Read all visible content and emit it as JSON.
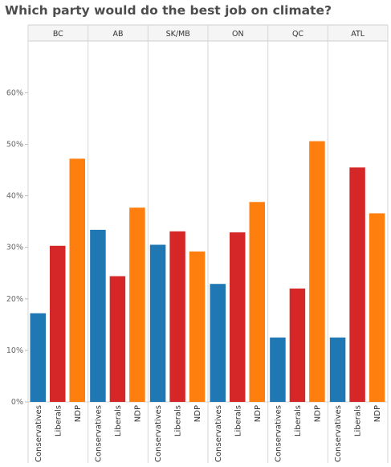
{
  "chart_data": {
    "type": "bar",
    "title": "Which party would do the best job on climate?",
    "regions": [
      "BC",
      "AB",
      "SK/MB",
      "ON",
      "QC",
      "ATL"
    ],
    "categories": [
      "Conservatives",
      "Liberals",
      "NDP"
    ],
    "colors": {
      "Conservatives": "#1f77b4",
      "Liberals": "#d62728",
      "NDP": "#ff7f0e"
    },
    "values": {
      "BC": [
        17.2,
        30.3,
        47.2
      ],
      "AB": [
        33.4,
        24.4,
        37.7
      ],
      "SK/MB": [
        30.5,
        33.1,
        29.2
      ],
      "ON": [
        22.9,
        32.9,
        38.8
      ],
      "QC": [
        12.5,
        22.0,
        50.6
      ],
      "ATL": [
        12.5,
        45.5,
        36.6
      ]
    },
    "yticks": [
      "0%",
      "10%",
      "20%",
      "30%",
      "40%",
      "50%",
      "60%"
    ],
    "ylim": [
      0,
      70
    ],
    "grid": false,
    "legend": "none"
  }
}
